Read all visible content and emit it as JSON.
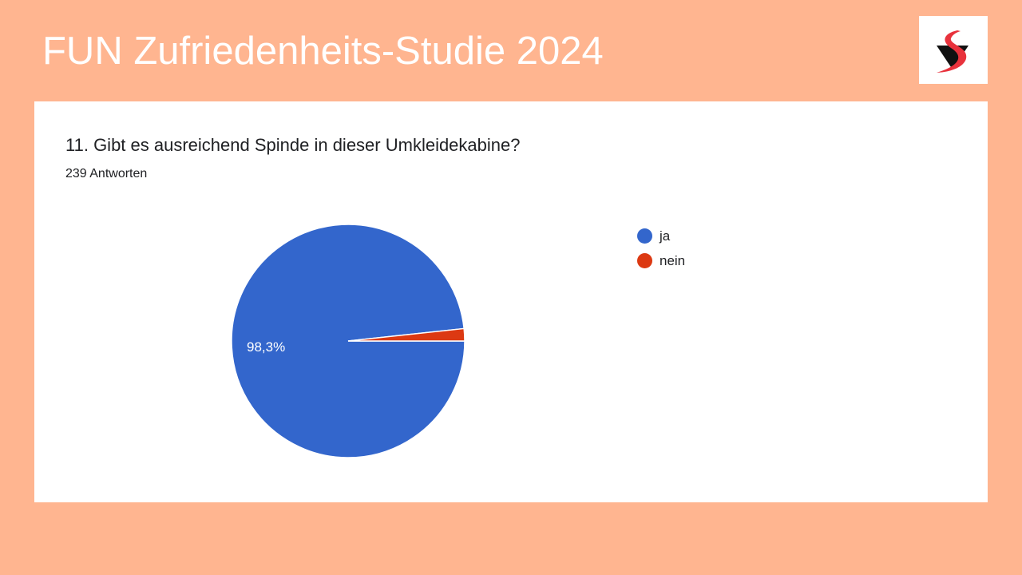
{
  "header": {
    "title": "FUN Zufriedenheits-Studie 2024"
  },
  "logo": {
    "name": "logo-s"
  },
  "chart_data": {
    "type": "pie",
    "title": "11. Gibt es ausreichend Spinde in dieser Umkleidekabine?",
    "subtitle": "239 Antworten",
    "categories": [
      "ja",
      "nein"
    ],
    "values": [
      98.3,
      1.7
    ],
    "colors": [
      "#3366cc",
      "#dc3912"
    ],
    "data_labels": [
      "98,3%",
      ""
    ],
    "legend_position": "right"
  }
}
